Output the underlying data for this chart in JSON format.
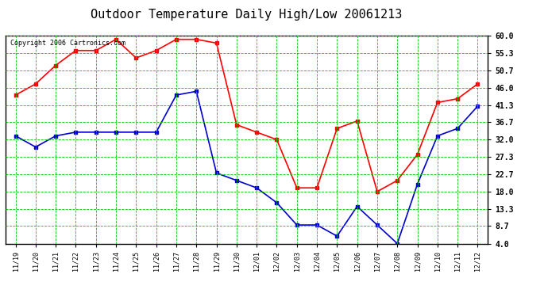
{
  "title": "Outdoor Temperature Daily High/Low 20061213",
  "copyright": "Copyright 2006 Cartronics.com",
  "dates": [
    "11/19",
    "11/20",
    "11/21",
    "11/22",
    "11/23",
    "11/24",
    "11/25",
    "11/26",
    "11/27",
    "11/28",
    "11/29",
    "11/30",
    "12/01",
    "12/02",
    "12/03",
    "12/04",
    "12/05",
    "12/06",
    "12/07",
    "12/08",
    "12/09",
    "12/10",
    "12/11",
    "12/12"
  ],
  "high_temps": [
    44,
    47,
    52,
    56,
    56,
    59,
    54,
    56,
    59,
    59,
    58,
    36,
    34,
    32,
    19,
    19,
    35,
    37,
    18,
    21,
    28,
    42,
    43,
    47
  ],
  "low_temps": [
    33,
    30,
    33,
    34,
    34,
    34,
    34,
    34,
    44,
    45,
    23,
    21,
    19,
    15,
    9,
    9,
    6,
    14,
    9,
    4,
    20,
    33,
    35,
    41
  ],
  "high_color": "#ff0000",
  "low_color": "#0000cc",
  "bg_color": "#ffffff",
  "grid_color": "#00cc00",
  "yticks": [
    4.0,
    8.7,
    13.3,
    18.0,
    22.7,
    27.3,
    32.0,
    36.7,
    41.3,
    46.0,
    50.7,
    55.3,
    60.0
  ],
  "ylim": [
    4.0,
    60.0
  ],
  "title_fontsize": 11,
  "copyright_fontsize": 6,
  "marker": "s",
  "markersize": 2.5,
  "linewidth": 1.2
}
